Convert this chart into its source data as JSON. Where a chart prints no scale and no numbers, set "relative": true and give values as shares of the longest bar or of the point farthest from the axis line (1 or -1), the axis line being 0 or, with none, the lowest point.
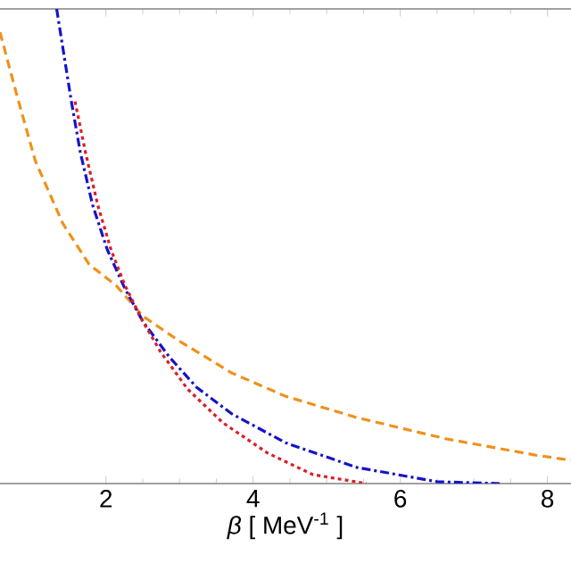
{
  "chart_data": {
    "type": "line",
    "relative": true,
    "xlabel": "*β* [ MeV$^{-1}$ ]",
    "xlim": [
      0.56,
      8.32
    ],
    "xticks": [
      2,
      4,
      6,
      8
    ],
    "marker": "none",
    "series": [
      {
        "color": "#f0901c",
        "line_style": "dashed",
        "x": [
          0.56,
          0.8,
          1.04,
          1.41,
          1.77,
          2.14,
          2.5,
          2.99,
          3.71,
          4.44,
          5.41,
          6.63,
          7.84,
          8.32
        ],
        "values": [
          0.951,
          0.812,
          0.68,
          0.549,
          0.462,
          0.417,
          0.353,
          0.301,
          0.233,
          0.184,
          0.139,
          0.094,
          0.06,
          0.049
        ]
      },
      {
        "color": "#1414c8",
        "line_style": "dashdot",
        "x": [
          1.33,
          1.53,
          1.65,
          1.82,
          2.02,
          2.26,
          2.5,
          2.86,
          3.23,
          3.71,
          4.44,
          5.41,
          6.5,
          7.35
        ],
        "values": [
          1.0,
          0.805,
          0.699,
          0.586,
          0.492,
          0.41,
          0.342,
          0.267,
          0.203,
          0.147,
          0.086,
          0.034,
          0.004,
          0
        ]
      },
      {
        "color": "#dc1e28",
        "line_style": "dotted",
        "x": [
          1.58,
          1.72,
          1.89,
          2.07,
          2.26,
          2.5,
          2.74,
          3.11,
          3.59,
          4.2,
          4.81,
          5.54
        ],
        "values": [
          0.805,
          0.699,
          0.586,
          0.492,
          0.417,
          0.342,
          0.278,
          0.199,
          0.128,
          0.064,
          0.019,
          0
        ]
      }
    ]
  }
}
